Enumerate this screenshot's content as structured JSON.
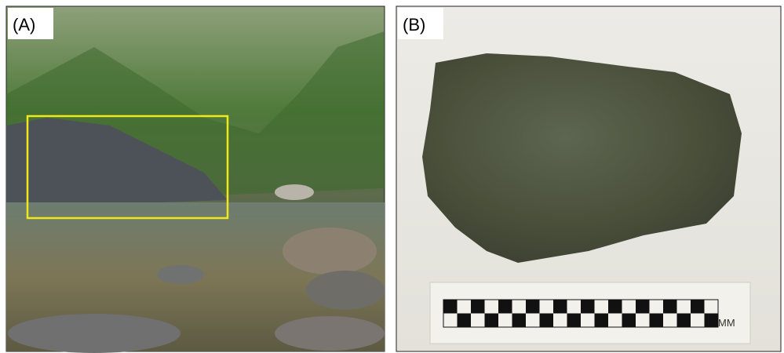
{
  "panels": [
    {
      "label": "(A)"
    },
    {
      "label": "(B)",
      "scale_unit": "MM"
    }
  ]
}
